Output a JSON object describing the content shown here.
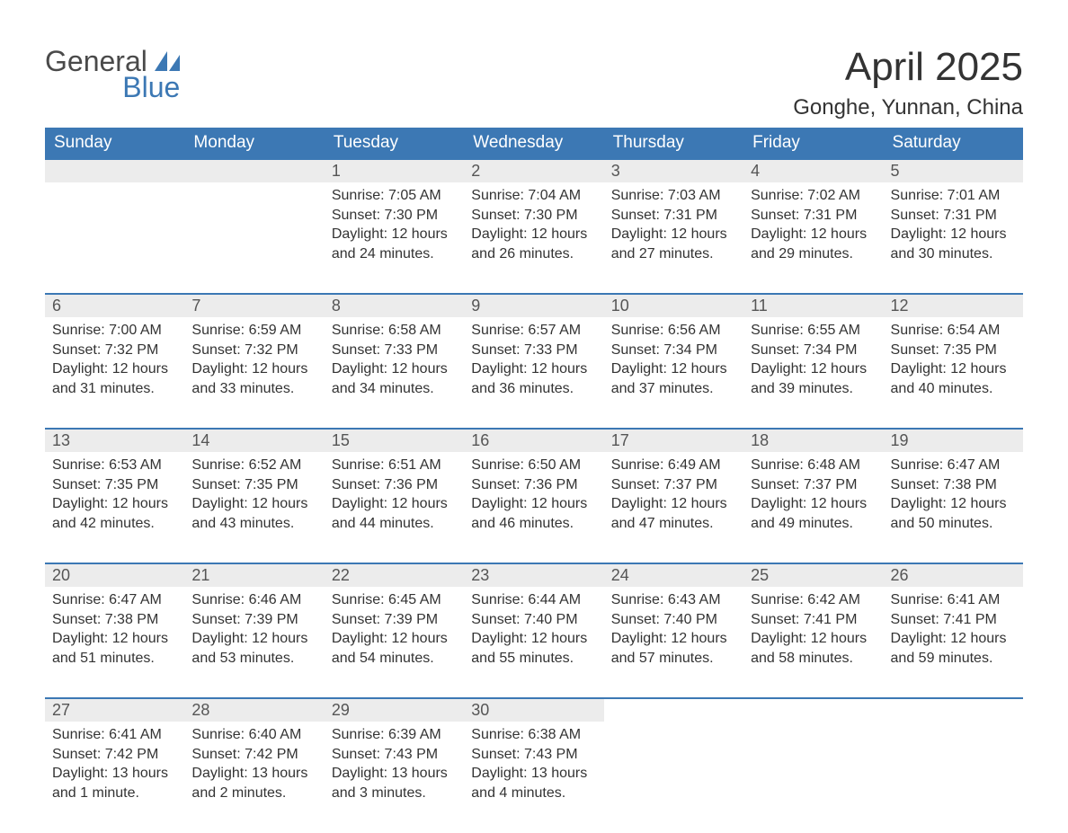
{
  "logo": {
    "part1": "General",
    "part2": "Blue",
    "sail_color": "#3c78b4"
  },
  "header": {
    "month_title": "April 2025",
    "location": "Gonghe, Yunnan, China"
  },
  "colors": {
    "header_bg": "#3c78b4",
    "header_text": "#ffffff",
    "daynum_bg": "#ececec",
    "daynum_text": "#555555",
    "body_text": "#333333",
    "row_border": "#3c78b4",
    "page_bg": "#ffffff"
  },
  "weekdays": [
    "Sunday",
    "Monday",
    "Tuesday",
    "Wednesday",
    "Thursday",
    "Friday",
    "Saturday"
  ],
  "weeks": [
    [
      {
        "empty": true
      },
      {
        "empty": true
      },
      {
        "daynum": "1",
        "sunrise": "Sunrise: 7:05 AM",
        "sunset": "Sunset: 7:30 PM",
        "daylight": "Daylight: 12 hours and 24 minutes."
      },
      {
        "daynum": "2",
        "sunrise": "Sunrise: 7:04 AM",
        "sunset": "Sunset: 7:30 PM",
        "daylight": "Daylight: 12 hours and 26 minutes."
      },
      {
        "daynum": "3",
        "sunrise": "Sunrise: 7:03 AM",
        "sunset": "Sunset: 7:31 PM",
        "daylight": "Daylight: 12 hours and 27 minutes."
      },
      {
        "daynum": "4",
        "sunrise": "Sunrise: 7:02 AM",
        "sunset": "Sunset: 7:31 PM",
        "daylight": "Daylight: 12 hours and 29 minutes."
      },
      {
        "daynum": "5",
        "sunrise": "Sunrise: 7:01 AM",
        "sunset": "Sunset: 7:31 PM",
        "daylight": "Daylight: 12 hours and 30 minutes."
      }
    ],
    [
      {
        "daynum": "6",
        "sunrise": "Sunrise: 7:00 AM",
        "sunset": "Sunset: 7:32 PM",
        "daylight": "Daylight: 12 hours and 31 minutes."
      },
      {
        "daynum": "7",
        "sunrise": "Sunrise: 6:59 AM",
        "sunset": "Sunset: 7:32 PM",
        "daylight": "Daylight: 12 hours and 33 minutes."
      },
      {
        "daynum": "8",
        "sunrise": "Sunrise: 6:58 AM",
        "sunset": "Sunset: 7:33 PM",
        "daylight": "Daylight: 12 hours and 34 minutes."
      },
      {
        "daynum": "9",
        "sunrise": "Sunrise: 6:57 AM",
        "sunset": "Sunset: 7:33 PM",
        "daylight": "Daylight: 12 hours and 36 minutes."
      },
      {
        "daynum": "10",
        "sunrise": "Sunrise: 6:56 AM",
        "sunset": "Sunset: 7:34 PM",
        "daylight": "Daylight: 12 hours and 37 minutes."
      },
      {
        "daynum": "11",
        "sunrise": "Sunrise: 6:55 AM",
        "sunset": "Sunset: 7:34 PM",
        "daylight": "Daylight: 12 hours and 39 minutes."
      },
      {
        "daynum": "12",
        "sunrise": "Sunrise: 6:54 AM",
        "sunset": "Sunset: 7:35 PM",
        "daylight": "Daylight: 12 hours and 40 minutes."
      }
    ],
    [
      {
        "daynum": "13",
        "sunrise": "Sunrise: 6:53 AM",
        "sunset": "Sunset: 7:35 PM",
        "daylight": "Daylight: 12 hours and 42 minutes."
      },
      {
        "daynum": "14",
        "sunrise": "Sunrise: 6:52 AM",
        "sunset": "Sunset: 7:35 PM",
        "daylight": "Daylight: 12 hours and 43 minutes."
      },
      {
        "daynum": "15",
        "sunrise": "Sunrise: 6:51 AM",
        "sunset": "Sunset: 7:36 PM",
        "daylight": "Daylight: 12 hours and 44 minutes."
      },
      {
        "daynum": "16",
        "sunrise": "Sunrise: 6:50 AM",
        "sunset": "Sunset: 7:36 PM",
        "daylight": "Daylight: 12 hours and 46 minutes."
      },
      {
        "daynum": "17",
        "sunrise": "Sunrise: 6:49 AM",
        "sunset": "Sunset: 7:37 PM",
        "daylight": "Daylight: 12 hours and 47 minutes."
      },
      {
        "daynum": "18",
        "sunrise": "Sunrise: 6:48 AM",
        "sunset": "Sunset: 7:37 PM",
        "daylight": "Daylight: 12 hours and 49 minutes."
      },
      {
        "daynum": "19",
        "sunrise": "Sunrise: 6:47 AM",
        "sunset": "Sunset: 7:38 PM",
        "daylight": "Daylight: 12 hours and 50 minutes."
      }
    ],
    [
      {
        "daynum": "20",
        "sunrise": "Sunrise: 6:47 AM",
        "sunset": "Sunset: 7:38 PM",
        "daylight": "Daylight: 12 hours and 51 minutes."
      },
      {
        "daynum": "21",
        "sunrise": "Sunrise: 6:46 AM",
        "sunset": "Sunset: 7:39 PM",
        "daylight": "Daylight: 12 hours and 53 minutes."
      },
      {
        "daynum": "22",
        "sunrise": "Sunrise: 6:45 AM",
        "sunset": "Sunset: 7:39 PM",
        "daylight": "Daylight: 12 hours and 54 minutes."
      },
      {
        "daynum": "23",
        "sunrise": "Sunrise: 6:44 AM",
        "sunset": "Sunset: 7:40 PM",
        "daylight": "Daylight: 12 hours and 55 minutes."
      },
      {
        "daynum": "24",
        "sunrise": "Sunrise: 6:43 AM",
        "sunset": "Sunset: 7:40 PM",
        "daylight": "Daylight: 12 hours and 57 minutes."
      },
      {
        "daynum": "25",
        "sunrise": "Sunrise: 6:42 AM",
        "sunset": "Sunset: 7:41 PM",
        "daylight": "Daylight: 12 hours and 58 minutes."
      },
      {
        "daynum": "26",
        "sunrise": "Sunrise: 6:41 AM",
        "sunset": "Sunset: 7:41 PM",
        "daylight": "Daylight: 12 hours and 59 minutes."
      }
    ],
    [
      {
        "daynum": "27",
        "sunrise": "Sunrise: 6:41 AM",
        "sunset": "Sunset: 7:42 PM",
        "daylight": "Daylight: 13 hours and 1 minute."
      },
      {
        "daynum": "28",
        "sunrise": "Sunrise: 6:40 AM",
        "sunset": "Sunset: 7:42 PM",
        "daylight": "Daylight: 13 hours and 2 minutes."
      },
      {
        "daynum": "29",
        "sunrise": "Sunrise: 6:39 AM",
        "sunset": "Sunset: 7:43 PM",
        "daylight": "Daylight: 13 hours and 3 minutes."
      },
      {
        "daynum": "30",
        "sunrise": "Sunrise: 6:38 AM",
        "sunset": "Sunset: 7:43 PM",
        "daylight": "Daylight: 13 hours and 4 minutes."
      },
      {
        "empty": true
      },
      {
        "empty": true
      },
      {
        "empty": true
      }
    ]
  ]
}
